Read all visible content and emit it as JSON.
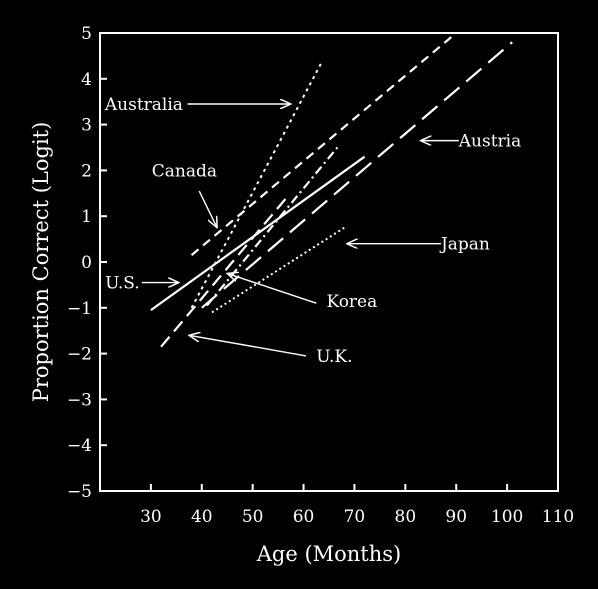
{
  "chart_data": {
    "type": "line",
    "xlabel": "Age (Months)",
    "ylabel": "Proportion Correct (Logit)",
    "xlim": [
      20,
      110
    ],
    "ylim": [
      -5,
      5
    ],
    "x_ticks": [
      30,
      40,
      50,
      60,
      70,
      80,
      90,
      100,
      110
    ],
    "y_ticks": [
      5,
      4,
      3,
      2,
      1,
      0,
      -1,
      -2,
      -3,
      -4,
      -5
    ],
    "y_tick_labels": [
      "5",
      "4",
      "3",
      "2",
      "1",
      "0",
      "−1",
      "−2",
      "−3",
      "−4",
      "−5"
    ],
    "grid": false,
    "series": [
      {
        "name": "Australia",
        "style": "dotted",
        "points": [
          [
            38,
            -1.0
          ],
          [
            63.5,
            4.35
          ]
        ]
      },
      {
        "name": "Canada",
        "style": "short-dash",
        "points": [
          [
            38,
            0.15
          ],
          [
            90,
            5.0
          ]
        ]
      },
      {
        "name": "U.S.",
        "style": "solid",
        "points": [
          [
            30,
            -1.05
          ],
          [
            72,
            2.3
          ]
        ]
      },
      {
        "name": "Austria",
        "style": "long-dash",
        "points": [
          [
            40,
            -1.0
          ],
          [
            101,
            4.8
          ]
        ]
      },
      {
        "name": "Japan",
        "style": "fine-dotted",
        "points": [
          [
            42,
            -1.1
          ],
          [
            68,
            0.75
          ]
        ]
      },
      {
        "name": "Korea",
        "style": "dash-dot",
        "points": [
          [
            41,
            -0.95
          ],
          [
            67,
            2.55
          ]
        ]
      },
      {
        "name": "U.K.",
        "style": "dashed",
        "points": [
          [
            32,
            -1.85
          ],
          [
            57,
            1.45
          ]
        ]
      }
    ],
    "annotations": [
      {
        "text": "Australia",
        "label_x": 36.3,
        "label_y": 3.45,
        "anchor": "end",
        "arrow_from": [
          37.2,
          3.45
        ],
        "arrow_to": [
          57.5,
          3.45
        ]
      },
      {
        "text": "Canada",
        "label_x": 43,
        "label_y": 2.0,
        "anchor": "end",
        "arrow_from": [
          39.5,
          1.55
        ],
        "arrow_to": [
          43.0,
          0.75
        ]
      },
      {
        "text": "Austria",
        "label_x": 90.5,
        "label_y": 2.65,
        "anchor": "start",
        "arrow_from": [
          90.5,
          2.65
        ],
        "arrow_to": [
          83.0,
          2.65
        ]
      },
      {
        "text": "Japan",
        "label_x": 87,
        "label_y": 0.4,
        "anchor": "start",
        "arrow_from": [
          87.0,
          0.4
        ],
        "arrow_to": [
          68.5,
          0.4
        ]
      },
      {
        "text": "U.S.",
        "label_x": 27.8,
        "label_y": -0.45,
        "anchor": "end",
        "arrow_from": [
          28.2,
          -0.45
        ],
        "arrow_to": [
          35.5,
          -0.45
        ]
      },
      {
        "text": "Korea",
        "label_x": 64.5,
        "label_y": -0.85,
        "anchor": "start",
        "arrow_from": [
          62.5,
          -0.9
        ],
        "arrow_to": [
          45.0,
          -0.25
        ]
      },
      {
        "text": "U.K.",
        "label_x": 62.5,
        "label_y": -2.05,
        "anchor": "start",
        "arrow_from": [
          60.5,
          -2.05
        ],
        "arrow_to": [
          37.5,
          -1.6
        ]
      }
    ]
  }
}
